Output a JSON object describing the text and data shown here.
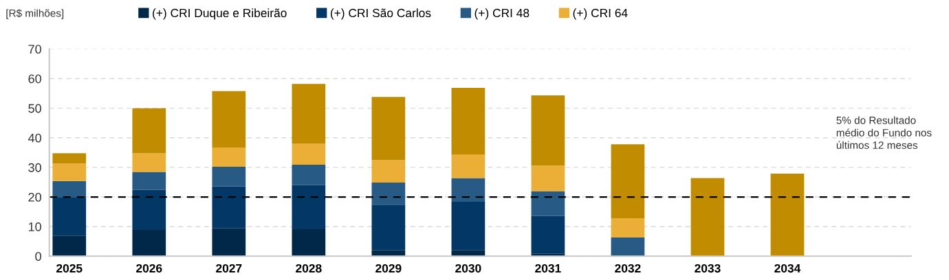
{
  "chart_data": {
    "type": "bar",
    "stacked": true,
    "ylabel": "[R$ milhões]",
    "categories": [
      "2025",
      "2026",
      "2027",
      "2028",
      "2029",
      "2030",
      "2031",
      "2032",
      "2033",
      "2034"
    ],
    "series": [
      {
        "name": "(+) CRI Duque e Ribeirão",
        "color": "#012849",
        "values": [
          7.0,
          8.9,
          9.4,
          9.1,
          2.0,
          2.1,
          0.8,
          0,
          0,
          0
        ]
      },
      {
        "name": "(+) CRI São Carlos",
        "color": "#033866",
        "values": [
          12.8,
          13.5,
          14.2,
          14.9,
          15.4,
          16.3,
          12.8,
          0,
          0,
          0
        ]
      },
      {
        "name": "(+) CRI 48",
        "color": "#275a85",
        "values": [
          5.6,
          6.1,
          6.6,
          6.9,
          7.5,
          8.0,
          8.4,
          6.4,
          0,
          0
        ]
      },
      {
        "name": "(+) CRI 64",
        "color": "#ebae36",
        "values": [
          5.9,
          6.3,
          6.5,
          7.1,
          7.6,
          8.0,
          8.6,
          6.4,
          0,
          0
        ]
      },
      {
        "color": "#c28c00",
        "values": [
          3.5,
          15.2,
          19.1,
          20.2,
          21.3,
          22.5,
          23.7,
          25.0,
          26.4,
          27.9
        ]
      }
    ],
    "ylim": [
      0,
      70
    ],
    "yticks": [
      0,
      10,
      20,
      30,
      40,
      50,
      60,
      70
    ],
    "grid": "y",
    "legend": "top",
    "annotations": [
      "5% do Resultado\nmédio do Fundo nos\núltimos 12 meses"
    ],
    "ref_lines": [
      {
        "axis": "y",
        "value": 20,
        "color": "#000000",
        "line_style": "dashed"
      }
    ]
  }
}
